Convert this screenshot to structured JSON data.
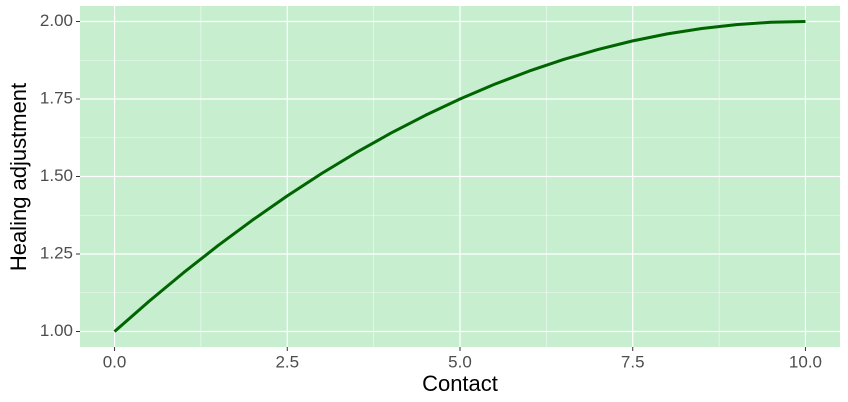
{
  "chart_data": {
    "type": "line",
    "x_label": "Contact",
    "y_label": "Healing adjustment",
    "x": [
      0,
      0.5,
      1,
      1.5,
      2,
      2.5,
      3,
      3.5,
      4,
      4.5,
      5,
      5.5,
      6,
      6.5,
      7,
      7.5,
      8,
      8.5,
      9,
      9.5,
      10
    ],
    "series": [
      {
        "color": "#006400",
        "values": [
          1,
          1.0975,
          1.19,
          1.2775,
          1.36,
          1.4375,
          1.51,
          1.5775,
          1.64,
          1.6975,
          1.75,
          1.7975,
          1.84,
          1.8775,
          1.91,
          1.9375,
          1.96,
          1.9775,
          1.99,
          1.9975,
          2
        ]
      }
    ],
    "xlim": [
      -0.5,
      10.5
    ],
    "xticks": [
      {
        "value": 0,
        "label": "0.0"
      },
      {
        "value": 2.5,
        "label": "2.5"
      },
      {
        "value": 5,
        "label": "5.0"
      },
      {
        "value": 7.5,
        "label": "7.5"
      },
      {
        "value": 10,
        "label": "10.0"
      }
    ],
    "ylim": [
      0.95,
      2.05
    ],
    "yticks": [
      {
        "value": 1,
        "label": "1.00"
      },
      {
        "value": 1.25,
        "label": "1.25"
      },
      {
        "value": 1.5,
        "label": "1.50"
      },
      {
        "value": 1.75,
        "label": "1.75"
      },
      {
        "value": 2,
        "label": "2.00"
      }
    ],
    "grid": true,
    "panel_color": "#c6eecf"
  }
}
